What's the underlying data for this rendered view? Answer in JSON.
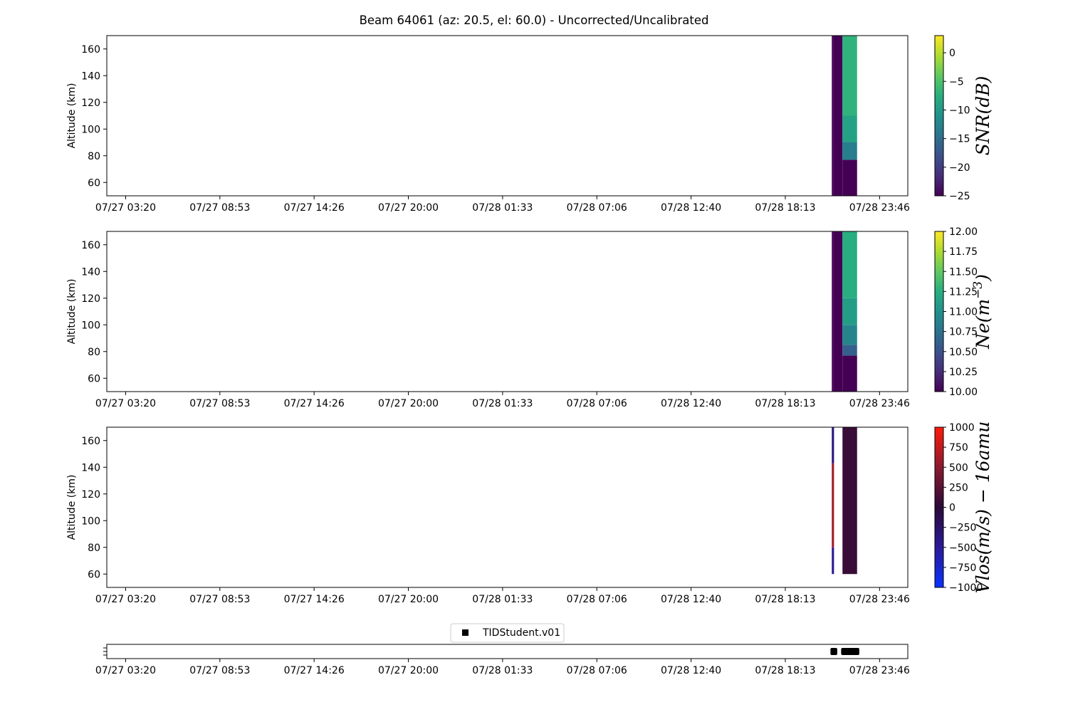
{
  "chart_data": {
    "type": "heatmap",
    "title": "Beam 64061 (az: 20.5, el: 60.0) - Uncorrected/Uncalibrated",
    "x_ticks": [
      "07/27 03:20",
      "07/27 08:53",
      "07/27 14:26",
      "07/27 20:00",
      "07/28 01:33",
      "07/28 07:06",
      "07/28 12:40",
      "07/28 18:13",
      "07/28 23:46"
    ],
    "x_range_hours": [
      -1.11,
      46.11
    ],
    "panels": [
      {
        "id": "snr",
        "ylabel": "Altitude (km)",
        "ylim": [
          50,
          170
        ],
        "y_ticks": [
          60,
          80,
          100,
          120,
          140,
          160
        ],
        "colorbar": {
          "label": "SNR(dB)",
          "colormap": "viridis",
          "range": [
            -25,
            3
          ],
          "ticks": [
            0,
            -5,
            -10,
            -15,
            -20,
            -25
          ],
          "tick_labels": [
            "0",
            "−5",
            "−10",
            "−15",
            "−20",
            "−25"
          ]
        },
        "segments": [
          {
            "t0": 41.63,
            "t1": 41.72,
            "alt0": 50,
            "alt1": 170,
            "value": -25
          },
          {
            "t0": 41.72,
            "t1": 42.26,
            "alt0": 50,
            "alt1": 170,
            "value": -25
          },
          {
            "t0": 42.26,
            "t1": 43.12,
            "alt0": 50,
            "alt1": 77,
            "value": -25
          },
          {
            "t0": 42.26,
            "t1": 43.12,
            "alt0": 77,
            "alt1": 90,
            "value": -13
          },
          {
            "t0": 42.26,
            "t1": 43.12,
            "alt0": 90,
            "alt1": 110,
            "value": -9
          },
          {
            "t0": 42.26,
            "t1": 43.12,
            "alt0": 110,
            "alt1": 170,
            "value": -7
          }
        ]
      },
      {
        "id": "ne",
        "ylabel": "Altitude (km)",
        "ylim": [
          50,
          170
        ],
        "y_ticks": [
          60,
          80,
          100,
          120,
          140,
          160
        ],
        "colorbar": {
          "label": "Ne(m^-3)",
          "colormap": "viridis",
          "range": [
            10,
            12
          ],
          "ticks": [
            12,
            11.75,
            11.5,
            11.25,
            11,
            10.75,
            10.5,
            10.25,
            10
          ],
          "tick_labels": [
            "12.00",
            "11.75",
            "11.50",
            "11.25",
            "11.00",
            "10.75",
            "10.50",
            "10.25",
            "10.00"
          ]
        },
        "segments": [
          {
            "t0": 41.63,
            "t1": 41.72,
            "alt0": 50,
            "alt1": 170,
            "value": 10
          },
          {
            "t0": 41.72,
            "t1": 42.26,
            "alt0": 50,
            "alt1": 170,
            "value": 10
          },
          {
            "t0": 42.26,
            "t1": 43.12,
            "alt0": 50,
            "alt1": 77,
            "value": 10
          },
          {
            "t0": 42.26,
            "t1": 43.12,
            "alt0": 77,
            "alt1": 85,
            "value": 10.6
          },
          {
            "t0": 42.26,
            "t1": 43.12,
            "alt0": 85,
            "alt1": 100,
            "value": 10.9
          },
          {
            "t0": 42.26,
            "t1": 43.12,
            "alt0": 100,
            "alt1": 120,
            "value": 11.1
          },
          {
            "t0": 42.26,
            "t1": 43.12,
            "alt0": 120,
            "alt1": 170,
            "value": 11.25
          }
        ]
      },
      {
        "id": "vlos",
        "ylabel": "Altitude (km)",
        "ylim": [
          50,
          170
        ],
        "y_ticks": [
          60,
          80,
          100,
          120,
          140,
          160
        ],
        "colorbar": {
          "label": "Vlos(m/s) − 16amu",
          "colormap": "bwr-dark",
          "range": [
            -1000,
            1000
          ],
          "ticks": [
            1000,
            750,
            500,
            250,
            0,
            -250,
            -500,
            -750,
            -1000
          ],
          "tick_labels": [
            "1000",
            "750",
            "500",
            "250",
            "0",
            "−250",
            "−500",
            "−750",
            "−1000"
          ]
        },
        "segments": [
          {
            "t0": 41.63,
            "t1": 41.76,
            "alt0": 60,
            "alt1": 80,
            "value": -450
          },
          {
            "t0": 41.63,
            "t1": 41.76,
            "alt0": 80,
            "alt1": 143,
            "value": 600
          },
          {
            "t0": 41.63,
            "t1": 41.76,
            "alt0": 143,
            "alt1": 170,
            "value": -350
          },
          {
            "t0": 42.26,
            "t1": 43.12,
            "alt0": 60,
            "alt1": 170,
            "value": 80
          }
        ]
      }
    ],
    "legend": {
      "entries": [
        {
          "name": "TIDStudent.v01",
          "marker": "square",
          "color": "#000000"
        }
      ],
      "location": "upper center"
    },
    "timeline": {
      "bars": [
        {
          "t0": 41.55,
          "t1": 41.95
        },
        {
          "t0": 42.18,
          "t1": 43.25
        }
      ]
    }
  }
}
